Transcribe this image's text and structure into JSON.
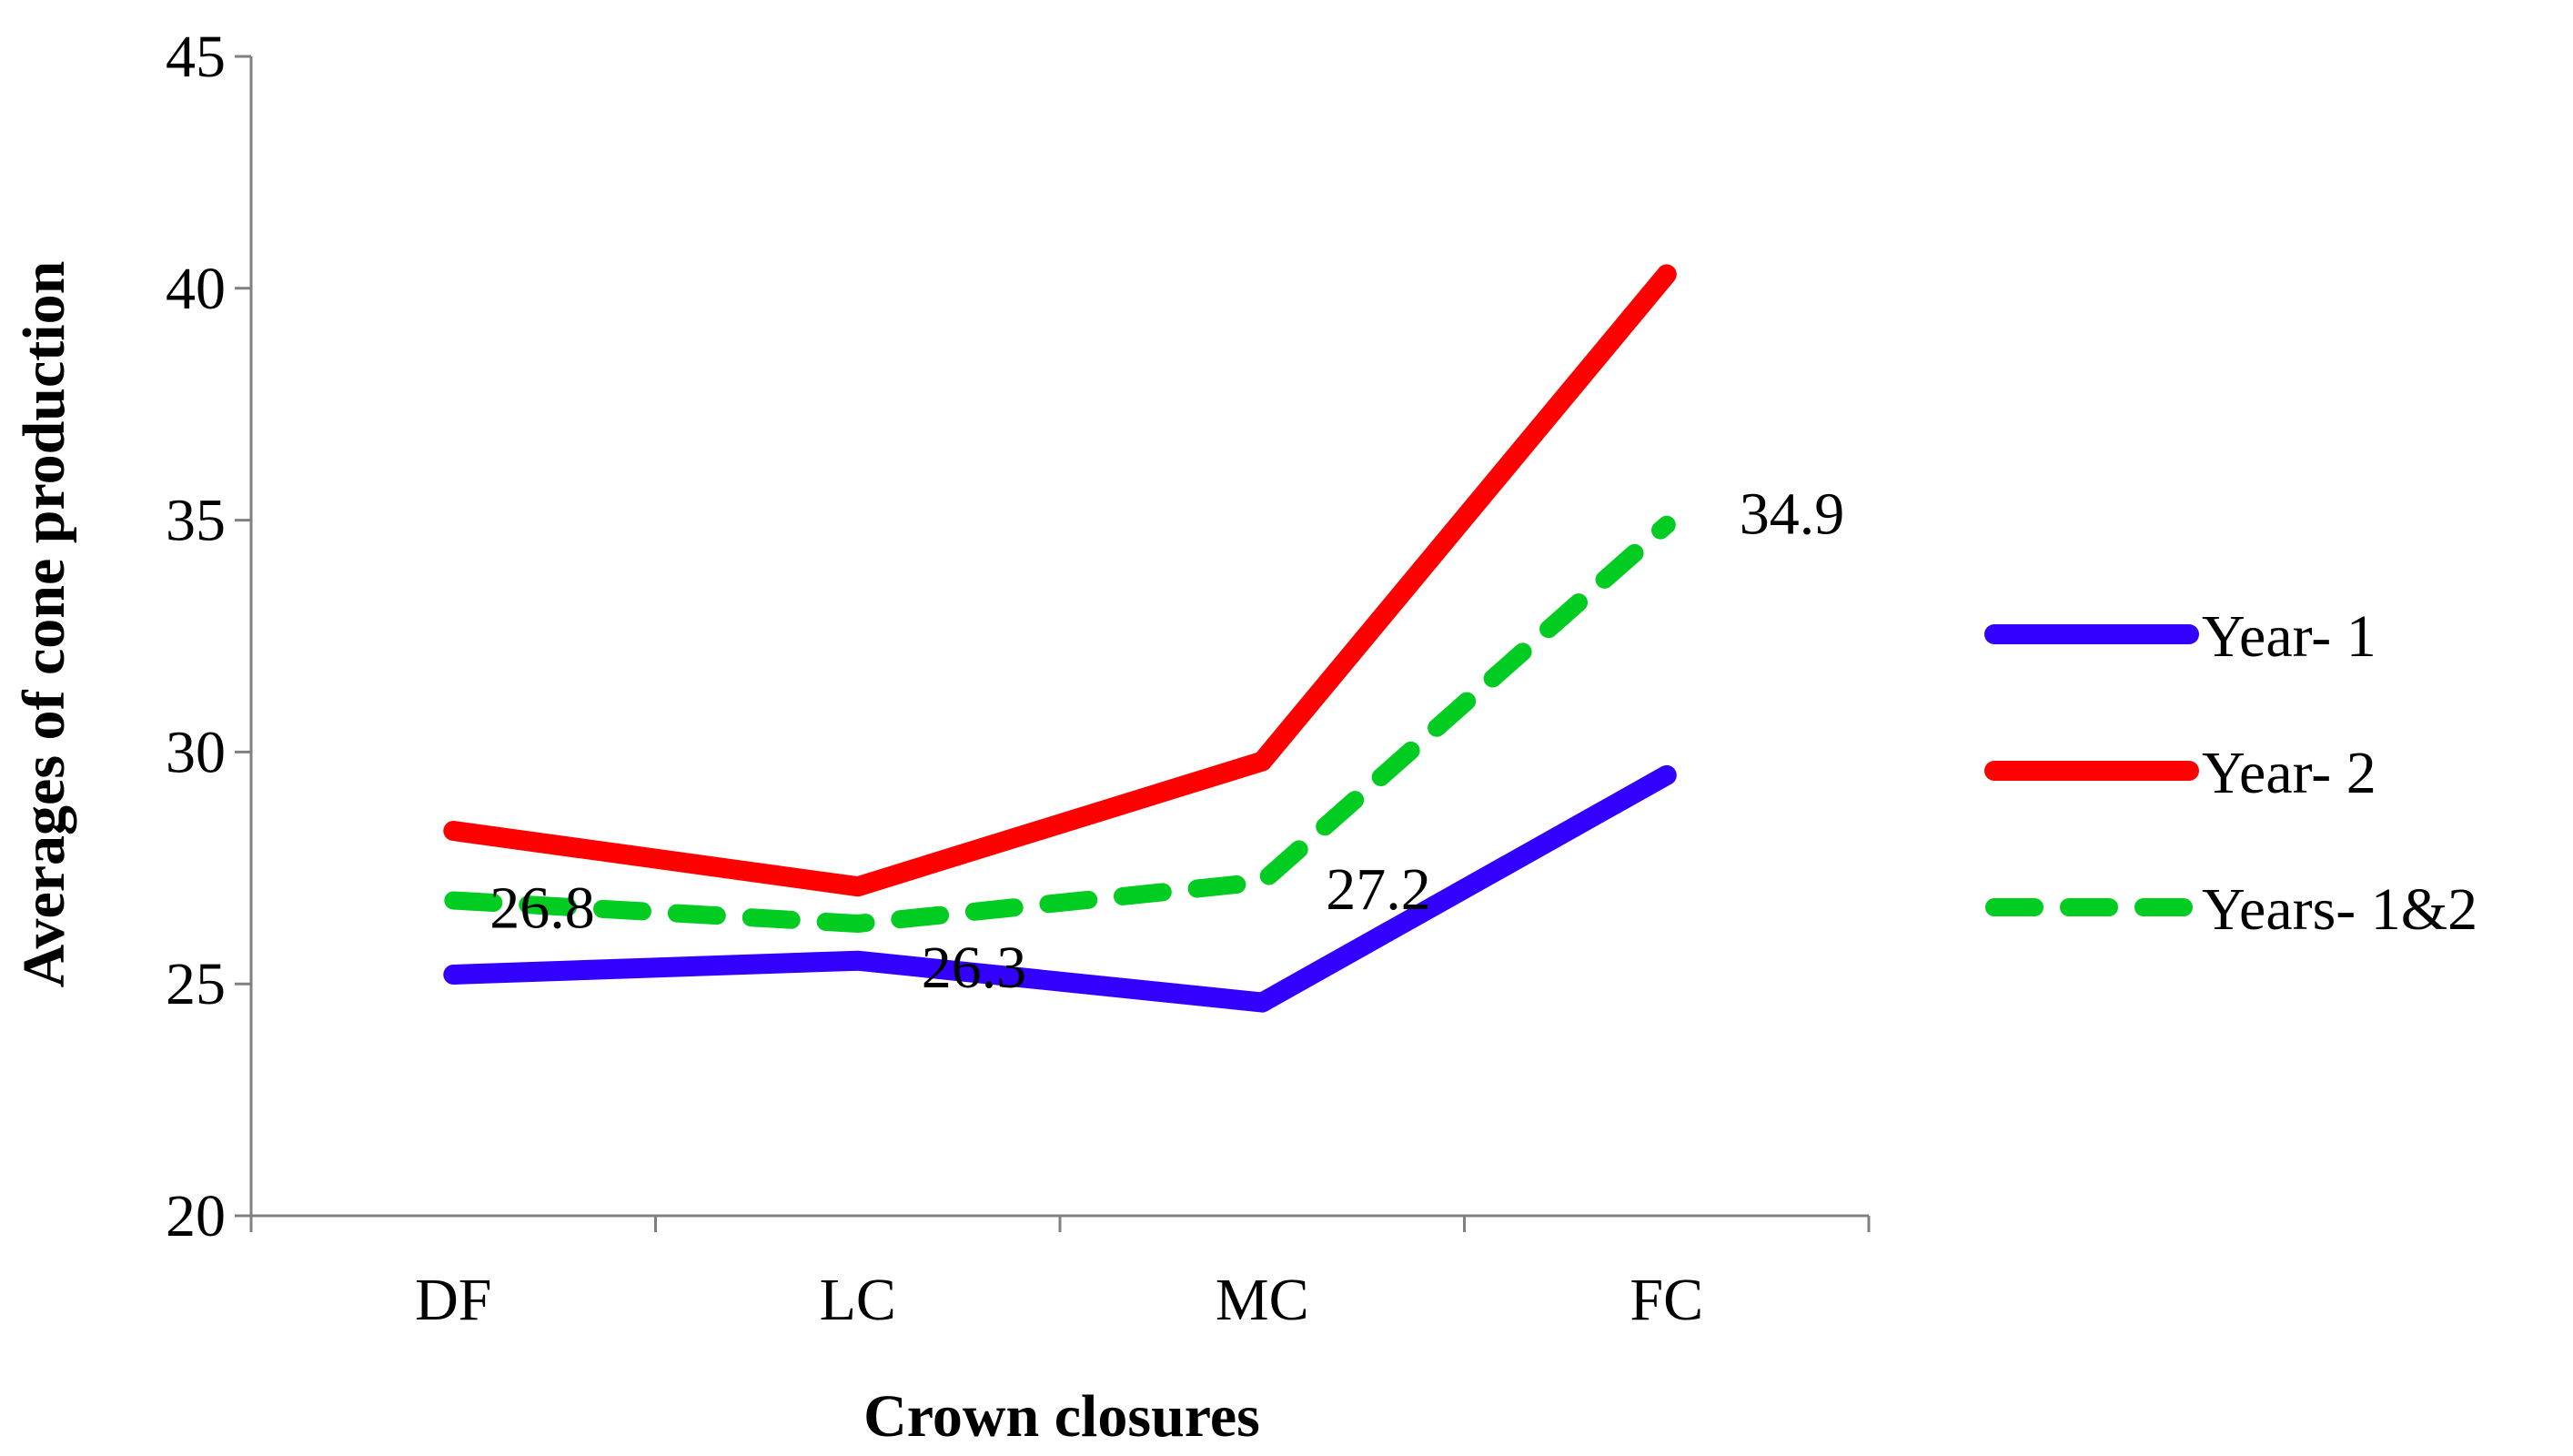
{
  "chart_data": {
    "type": "line",
    "title": "",
    "xlabel": "Crown closures",
    "ylabel": "Averages of cone production",
    "categories": [
      "DF",
      "LC",
      "MC",
      "FC"
    ],
    "ylim": [
      20,
      45
    ],
    "yticks": [
      20,
      25,
      30,
      35,
      40,
      45
    ],
    "ytick_labels": [
      "20",
      "25",
      "30",
      "35",
      "40",
      "45"
    ],
    "grid": false,
    "legend_position": "right",
    "series": [
      {
        "name": "Year- 1",
        "values": [
          25.2,
          25.5,
          24.6,
          29.5
        ],
        "color": "#3300ff",
        "style": "solid"
      },
      {
        "name": "Year- 2",
        "values": [
          28.3,
          27.1,
          29.8,
          40.3
        ],
        "color": "#ff0000",
        "style": "solid"
      },
      {
        "name": "Years- 1&2",
        "values": [
          26.8,
          26.3,
          27.2,
          34.9
        ],
        "color": "#00cc22",
        "style": "dashed",
        "data_labels": [
          "26.8",
          "26.3",
          "27.2",
          "34.9"
        ]
      }
    ]
  }
}
